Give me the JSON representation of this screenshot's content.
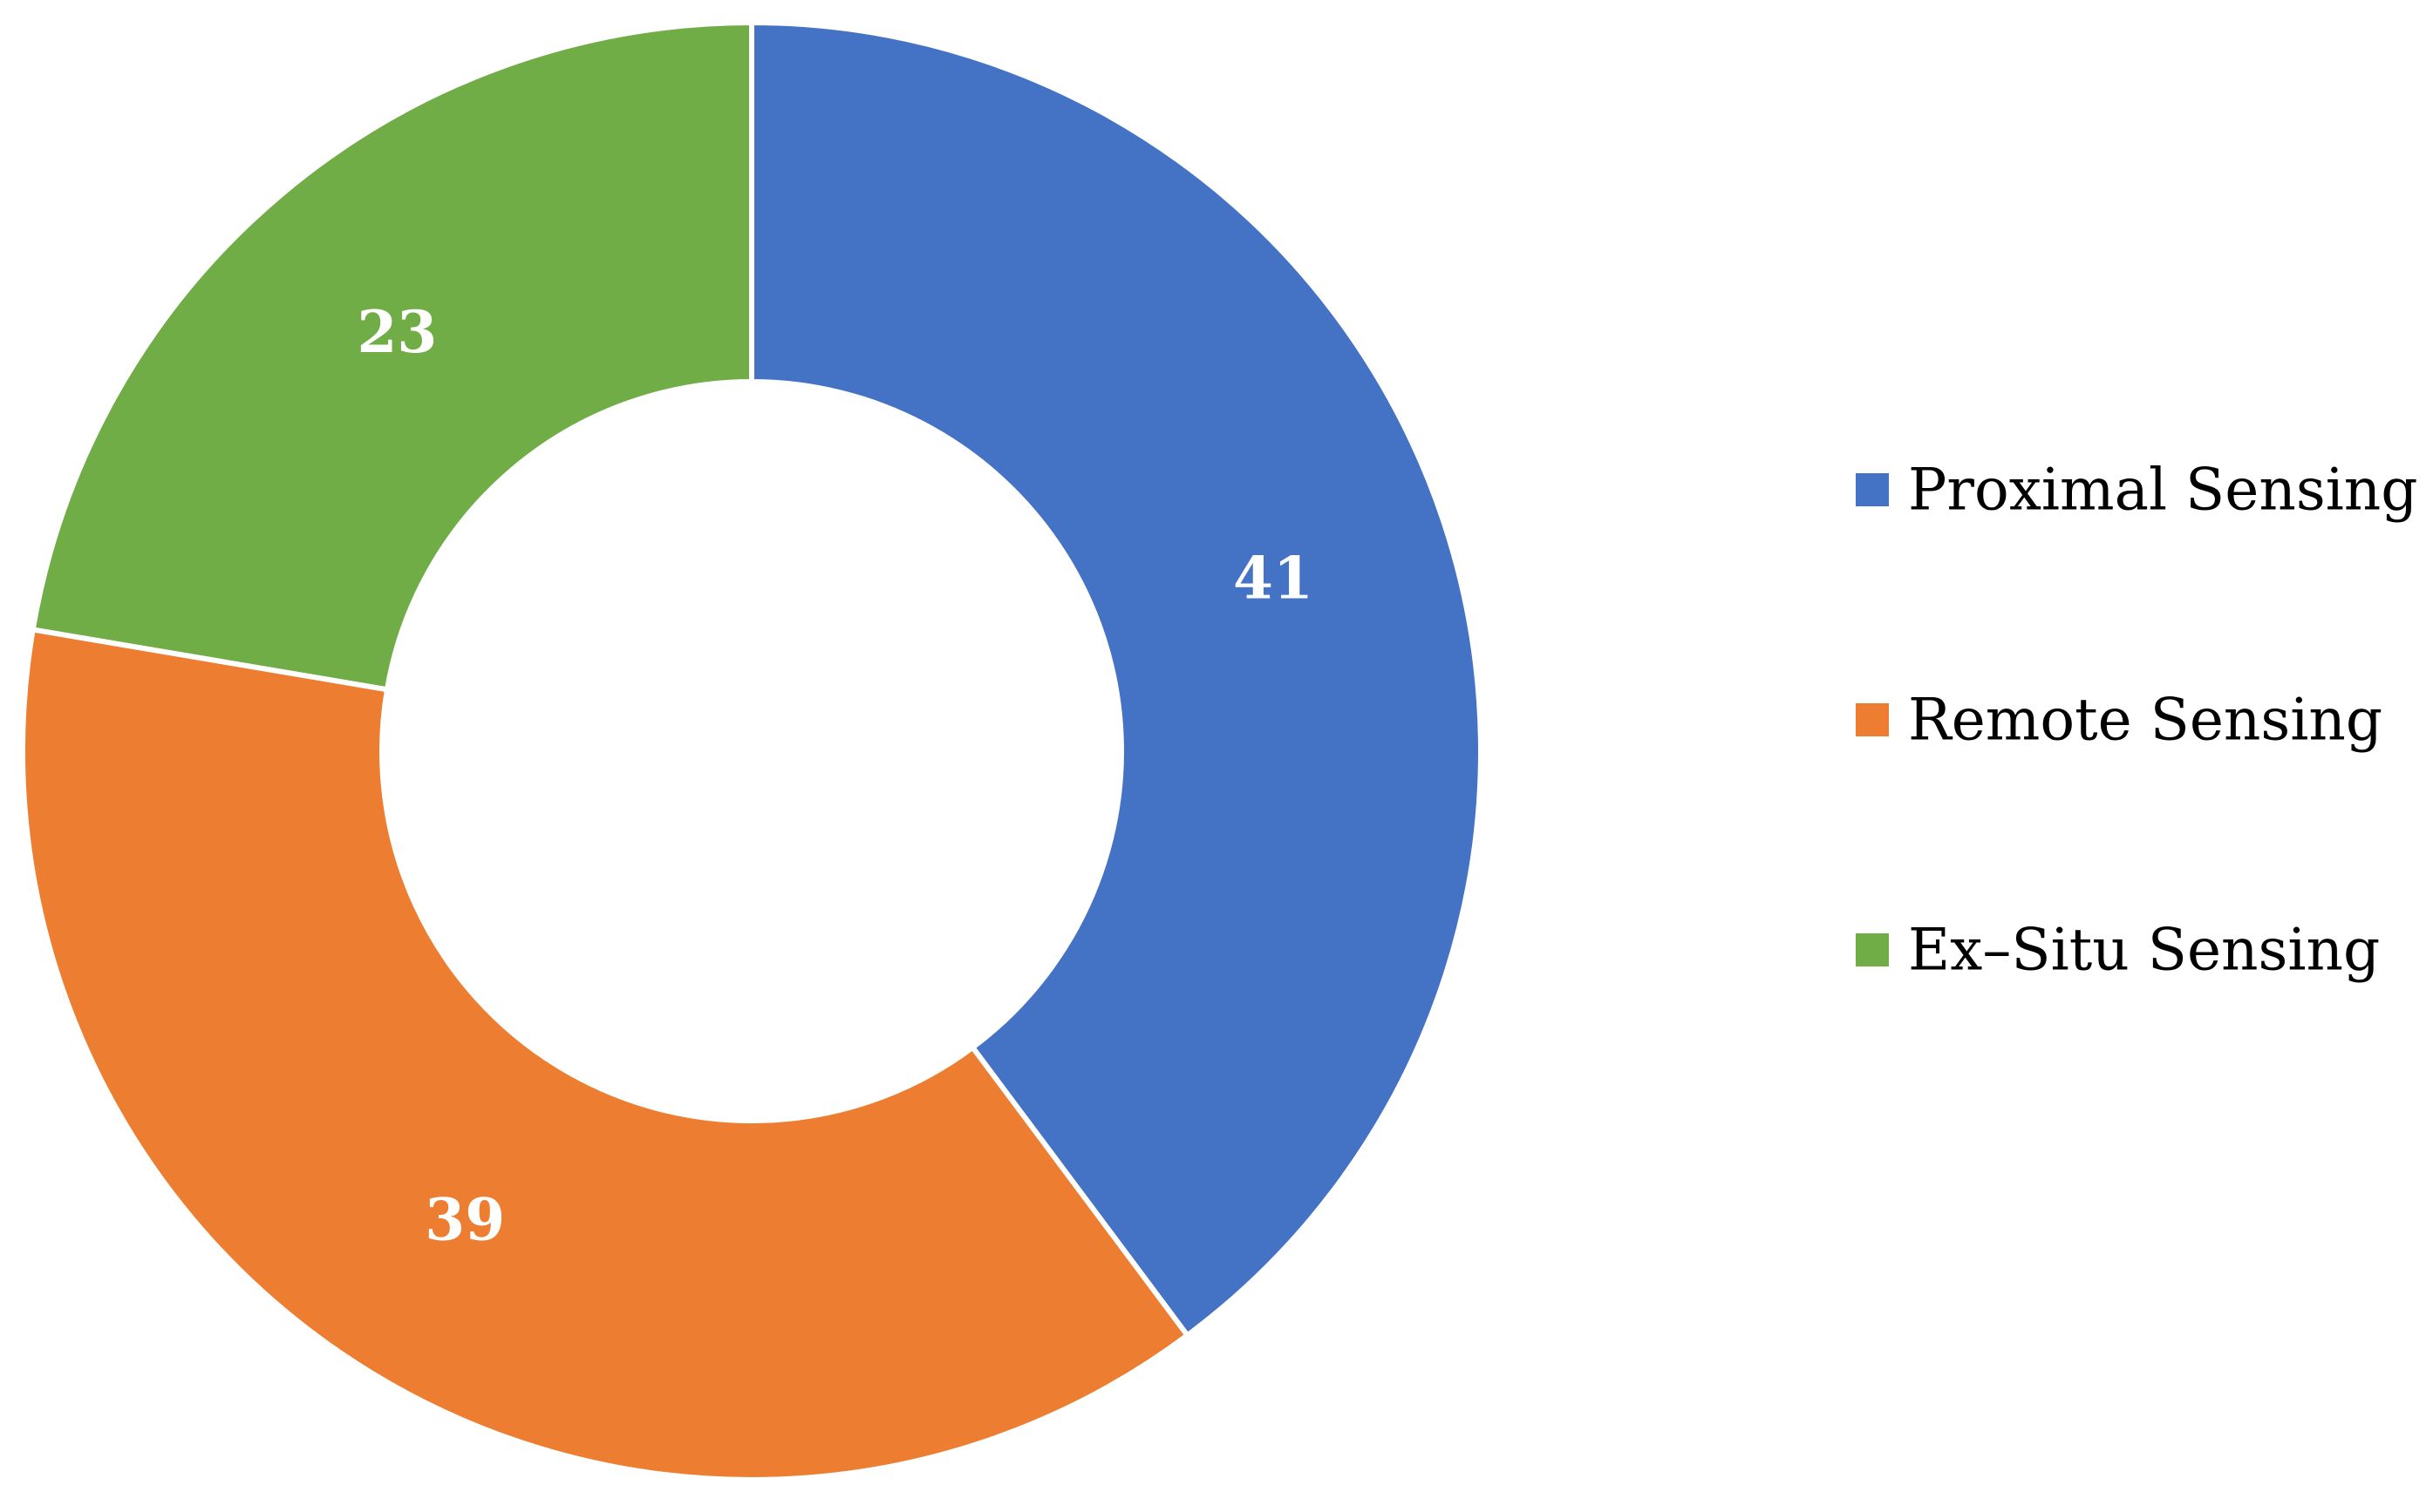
{
  "chart_data": {
    "type": "pie",
    "style": "donut",
    "categories": [
      "Proximal Sensing",
      "Remote Sensing",
      "Ex–Situ Sensing"
    ],
    "values": [
      41,
      39,
      23
    ],
    "colors": [
      "#4472C4",
      "#ED7D31",
      "#70AD47"
    ],
    "data_labels": [
      "41",
      "39",
      "23"
    ],
    "legend_position": "right",
    "start_angle_deg": 0,
    "direction": "clockwise"
  }
}
